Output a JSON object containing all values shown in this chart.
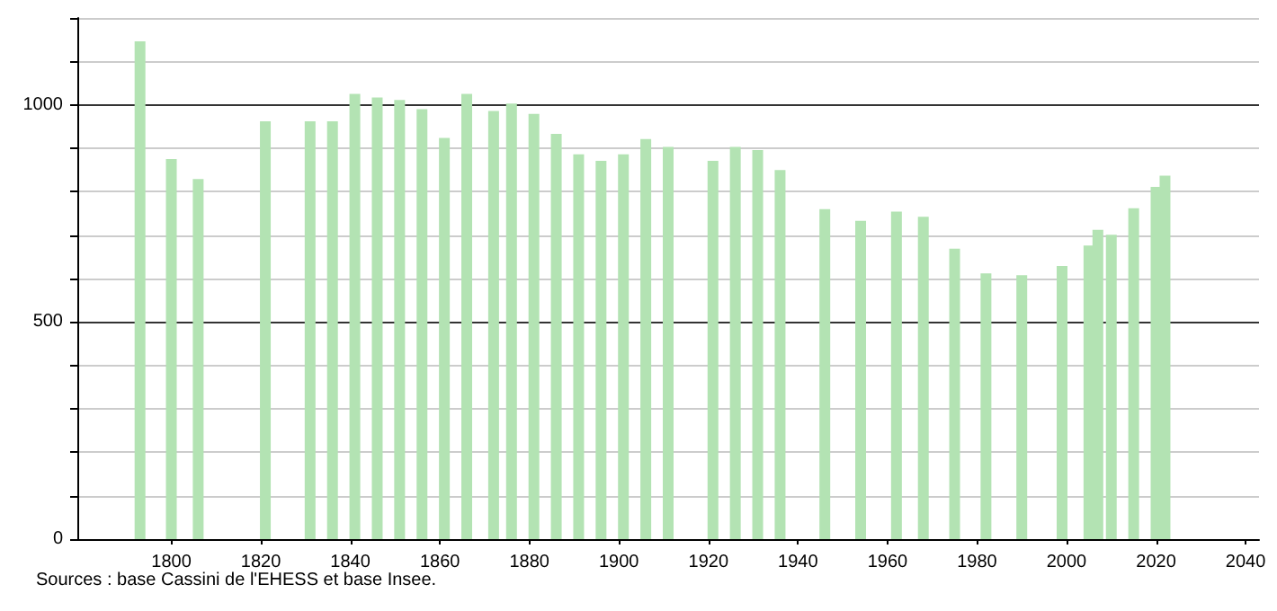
{
  "chart_data": {
    "type": "bar",
    "x": [
      1793,
      1800,
      1806,
      1821,
      1831,
      1836,
      1841,
      1846,
      1851,
      1856,
      1861,
      1866,
      1872,
      1876,
      1881,
      1886,
      1891,
      1896,
      1901,
      1906,
      1911,
      1921,
      1926,
      1931,
      1936,
      1946,
      1954,
      1962,
      1968,
      1975,
      1982,
      1990,
      1999,
      2005,
      2007,
      2010,
      2015,
      2020,
      2022
    ],
    "series": [
      {
        "color": "#b3e3b3",
        "values": [
          1146,
          875,
          829,
          962,
          962,
          962,
          1025,
          1017,
          1011,
          990,
          924,
          1025,
          986,
          1003,
          979,
          933,
          886,
          871,
          886,
          921,
          903,
          871,
          903,
          896,
          850,
          760,
          733,
          754,
          742,
          669,
          612,
          608,
          629,
          676,
          712,
          701,
          762,
          811,
          837
        ]
      }
    ],
    "xlim": [
      1779,
      2043
    ],
    "xticks": [
      1800,
      1820,
      1840,
      1860,
      1880,
      1900,
      1920,
      1940,
      1960,
      1980,
      2000,
      2020,
      2040
    ],
    "ylim": [
      0,
      1200
    ],
    "yticks": [
      0,
      {
        "value": 100,
        "label": null
      },
      {
        "value": 200,
        "label": null
      },
      {
        "value": 300,
        "label": null
      },
      {
        "value": 400,
        "label": null
      },
      500,
      {
        "value": 600,
        "label": null
      },
      {
        "value": 700,
        "label": null
      },
      {
        "value": 800,
        "label": null
      },
      {
        "value": 900,
        "label": null
      },
      1000,
      {
        "value": 1100,
        "label": null
      },
      {
        "value": 1200,
        "label": null
      }
    ],
    "grid": "y",
    "annotations": [
      "Sources : base Cassini de l'EHESS et base Insee."
    ]
  }
}
